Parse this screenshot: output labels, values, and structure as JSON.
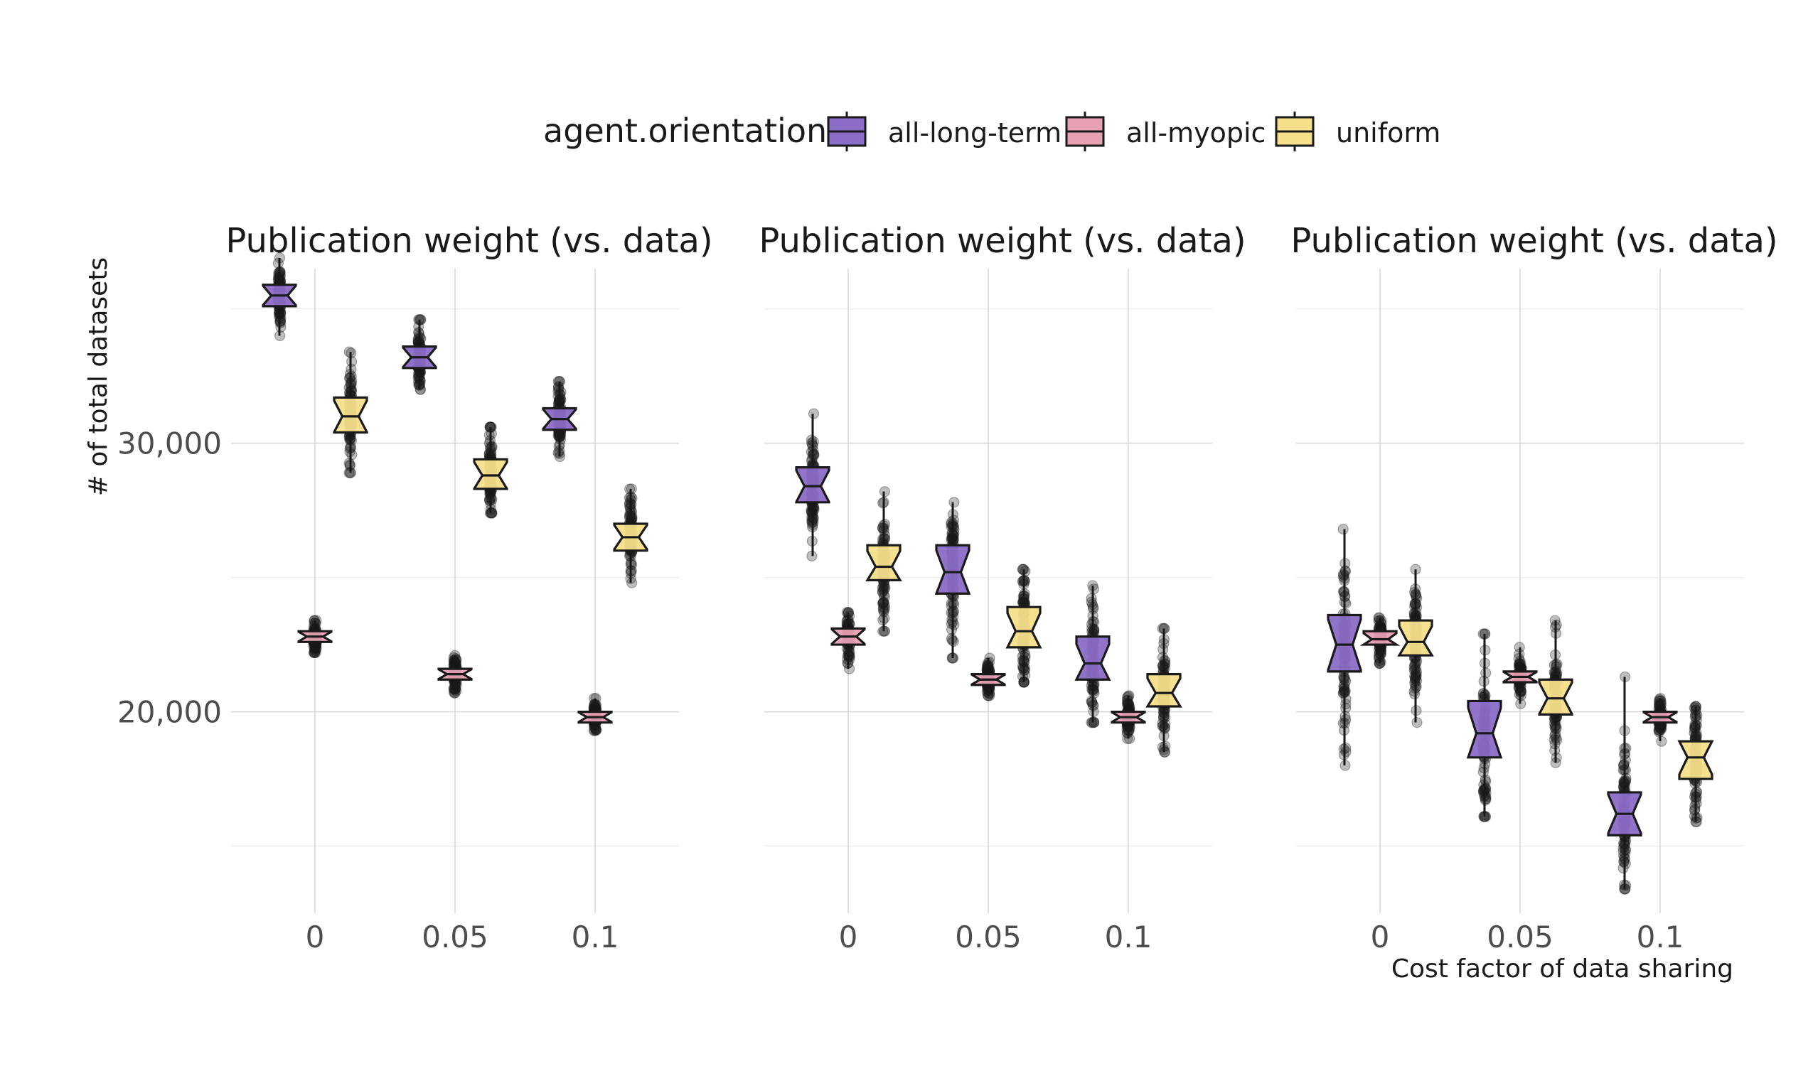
{
  "chart_data": {
    "type": "boxplot",
    "legend": {
      "title": "agent.orientation",
      "position": "top",
      "entries": [
        {
          "key": "all-long-term",
          "label": "all-long-term",
          "color": "#8b6cc7"
        },
        {
          "key": "all-myopic",
          "label": "all-myopic",
          "color": "#e8a0b4"
        },
        {
          "key": "uniform",
          "label": "uniform",
          "color": "#f5df8a"
        }
      ]
    },
    "xlabel": "Cost factor of data sharing",
    "ylabel": "# of total datasets",
    "categories": [
      "0",
      "0.05",
      "0.1"
    ],
    "ylim": [
      12500,
      36500
    ],
    "yticks": [
      20000,
      30000
    ],
    "ytick_labels": [
      "20,000",
      "30,000"
    ],
    "yminor": [
      15000,
      25000,
      35000
    ],
    "grid": true,
    "notched": true,
    "panels": [
      {
        "title": "Publication weight (vs. data)",
        "series": {
          "all-long-term": [
            {
              "category": "0",
              "min": 34000,
              "q1": 35100,
              "median": 35500,
              "q3": 35900,
              "max": 36900
            },
            {
              "category": "0.05",
              "min": 32000,
              "q1": 32800,
              "median": 33200,
              "q3": 33600,
              "max": 34600
            },
            {
              "category": "0.1",
              "min": 29500,
              "q1": 30500,
              "median": 30900,
              "q3": 31300,
              "max": 32300
            }
          ],
          "all-myopic": [
            {
              "category": "0",
              "min": 22200,
              "q1": 22600,
              "median": 22800,
              "q3": 23000,
              "max": 23400
            },
            {
              "category": "0.05",
              "min": 20700,
              "q1": 21200,
              "median": 21400,
              "q3": 21600,
              "max": 22100
            },
            {
              "category": "0.1",
              "min": 19300,
              "q1": 19600,
              "median": 19800,
              "q3": 20000,
              "max": 20500
            }
          ],
          "uniform": [
            {
              "category": "0",
              "min": 28900,
              "q1": 30400,
              "median": 31000,
              "q3": 31700,
              "max": 33400
            },
            {
              "category": "0.05",
              "min": 27400,
              "q1": 28300,
              "median": 28800,
              "q3": 29400,
              "max": 30600
            },
            {
              "category": "0.1",
              "min": 24800,
              "q1": 26000,
              "median": 26500,
              "q3": 27000,
              "max": 28300
            }
          ]
        }
      },
      {
        "title": "Publication weight (vs. data)",
        "series": {
          "all-long-term": [
            {
              "category": "0",
              "min": 25800,
              "q1": 27800,
              "median": 28400,
              "q3": 29100,
              "max": 31100
            },
            {
              "category": "0.05",
              "min": 22000,
              "q1": 24400,
              "median": 25200,
              "q3": 26200,
              "max": 27800
            },
            {
              "category": "0.1",
              "min": 19600,
              "q1": 21200,
              "median": 21800,
              "q3": 22800,
              "max": 24700
            }
          ],
          "all-myopic": [
            {
              "category": "0",
              "min": 21600,
              "q1": 22500,
              "median": 22800,
              "q3": 23100,
              "max": 23700
            },
            {
              "category": "0.05",
              "min": 20600,
              "q1": 21000,
              "median": 21200,
              "q3": 21400,
              "max": 22000
            },
            {
              "category": "0.1",
              "min": 19000,
              "q1": 19600,
              "median": 19800,
              "q3": 20000,
              "max": 20600
            }
          ],
          "uniform": [
            {
              "category": "0",
              "min": 23000,
              "q1": 24900,
              "median": 25400,
              "q3": 26200,
              "max": 28200
            },
            {
              "category": "0.05",
              "min": 21100,
              "q1": 22400,
              "median": 23000,
              "q3": 23900,
              "max": 25300
            },
            {
              "category": "0.1",
              "min": 18500,
              "q1": 20200,
              "median": 20700,
              "q3": 21400,
              "max": 23100
            }
          ]
        }
      },
      {
        "title": "Publication weight (vs. data)",
        "series": {
          "all-long-term": [
            {
              "category": "0",
              "min": 18000,
              "q1": 21500,
              "median": 22500,
              "q3": 23600,
              "max": 26800
            },
            {
              "category": "0.05",
              "min": 16100,
              "q1": 18300,
              "median": 19200,
              "q3": 20400,
              "max": 22900
            },
            {
              "category": "0.1",
              "min": 13400,
              "q1": 15400,
              "median": 16200,
              "q3": 17000,
              "max": 21300
            }
          ],
          "all-myopic": [
            {
              "category": "0",
              "min": 21800,
              "q1": 22500,
              "median": 22700,
              "q3": 23000,
              "max": 23500
            },
            {
              "category": "0.05",
              "min": 20300,
              "q1": 21100,
              "median": 21300,
              "q3": 21500,
              "max": 22400
            },
            {
              "category": "0.1",
              "min": 18900,
              "q1": 19600,
              "median": 19800,
              "q3": 20000,
              "max": 20500
            }
          ],
          "uniform": [
            {
              "category": "0",
              "min": 19600,
              "q1": 22100,
              "median": 22600,
              "q3": 23400,
              "max": 25300
            },
            {
              "category": "0.05",
              "min": 18100,
              "q1": 19900,
              "median": 20500,
              "q3": 21200,
              "max": 23400
            },
            {
              "category": "0.1",
              "min": 15900,
              "q1": 17500,
              "median": 18300,
              "q3": 18900,
              "max": 20200
            }
          ]
        }
      }
    ]
  }
}
